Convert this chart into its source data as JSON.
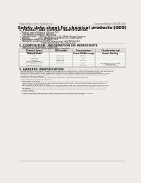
{
  "bg_color": "#f0ede8",
  "page_bg": "#f0ede8",
  "header_top_left": "Product Name: Lithium Ion Battery Cell",
  "header_top_right": "Document Number: SDS-049-00018\nEstablishment / Revision: Dec.7 2016",
  "main_title": "Safety data sheet for chemical products (SDS)",
  "section1_title": "1. PRODUCT AND COMPANY IDENTIFICATION",
  "section1_lines": [
    "  • Product name: Lithium Ion Battery Cell",
    "  • Product code: Cylindrical-type cell",
    "       SYP18650J, SYP18650U, SYP18650A",
    "  • Company name:     Sanyo Electric Co., Ltd., Mobile Energy Company",
    "  • Address:             2001  Kamimakura, Sumoto-City, Hyogo, Japan",
    "  • Telephone number:   +81-799-26-4111",
    "  • Fax number:  +81-799-26-4120",
    "  • Emergency telephone number (daburetime) +81-799-26-2662",
    "                                    (Night and holiday) +81-799-26-2101"
  ],
  "section2_title": "2. COMPOSITION / INFORMATION ON INGREDIENTS",
  "section2_intro": "  • Substance or preparation: Preparation",
  "section2_sub": "    • Information about the chemical nature of product:",
  "table_headers": [
    "Chemical name /\nGeneral name",
    "CAS number",
    "Concentration /\nConcentration range",
    "Classification and\nhazard labeling"
  ],
  "table_col1": [
    "Lithium cobalt oxide\n(LiCoO2/LiCo1O2)",
    "Iron",
    "Aluminum",
    "Graphite\n(Hard in graphite-I)\n(Air-floated graphite-I)",
    "Copper",
    "Organic electrolyte"
  ],
  "table_col2": [
    "",
    "7439-89-6",
    "7429-90-5",
    "7782-42-5\n7782-44-2",
    "7440-50-8",
    ""
  ],
  "table_col3": [
    "30-60%",
    "10-20%",
    "2-5%",
    "10-25%",
    "5-15%",
    "10-20%"
  ],
  "table_col4": [
    "",
    "-",
    "-",
    "-",
    "Sensitization of the skin\ngroup No.2",
    "Flammable liquid"
  ],
  "section3_title": "3. HAZARDS IDENTIFICATION",
  "section3_lines": [
    "   For the battery cell, chemical materials are stored in a hermetically sealed metal case, designed to withstand",
    "   temperatures or pressures variations occurring during normal use. As a result, during normal use, there is no",
    "   physical danger of ignition or explosion and there is no danger of hazardous materials leakage.",
    "   However, if exposed to a fire, added mechanical shocks, decomposed, external electric stress may cause.",
    "   the gas release cannot be operated. The battery cell case will be breached at fire patterns, hazardous",
    "   materials may be released.",
    "   Moreover, if heated strongly by the surrounding fire, some gas may be emitted.",
    "",
    "  • Most important hazard and effects:",
    "    Human health effects:",
    "      Inhalation: The release of the electrolyte has an anaesthesia action and stimulates in respiratory tract.",
    "      Skin contact: The release of the electrolyte stimulates a skin. The electrolyte skin contact causes a",
    "      sore and stimulation on the skin.",
    "      Eye contact: The release of the electrolyte stimulates eyes. The electrolyte eye contact causes a sore",
    "      and stimulation on the eye. Especially, a substance that causes a strong inflammation of the eye is",
    "      contained.",
    "      Environmental effects: Since a battery cell remains in the environment, do not throw out it into the",
    "      environment.",
    "  • Specific hazards:",
    "      If the electrolyte contacts with water, it will generate detrimental hydrogen fluoride.",
    "      Since the lead electrolyte is inflammable liquid, do not bring close to fire."
  ]
}
